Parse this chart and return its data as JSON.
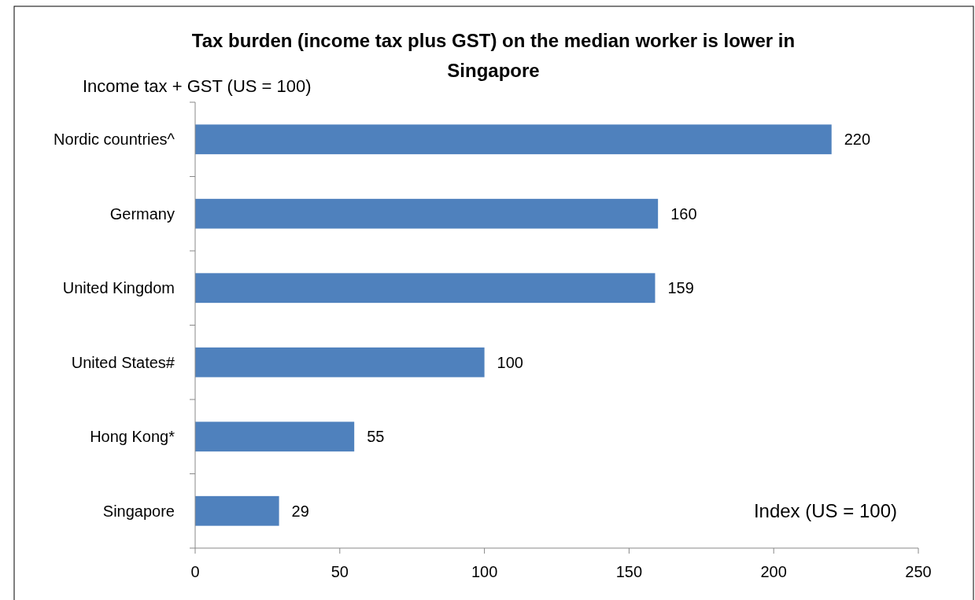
{
  "chart_data": {
    "type": "bar",
    "orientation": "horizontal",
    "title": "Tax burden (income tax plus GST) on the median worker is lower in Singapore",
    "ylabel": "Income tax + GST (US = 100)",
    "xlabel": "Index (US = 100)",
    "categories": [
      "Nordic countries^",
      "Germany",
      "United Kingdom",
      "United States#",
      "Hong Kong*",
      "Singapore"
    ],
    "values": [
      220,
      160,
      159,
      100,
      55,
      29
    ],
    "color": "#4f81bd",
    "xlim": [
      0,
      250
    ],
    "xticks": [
      0,
      50,
      100,
      150,
      200,
      250
    ],
    "data_labels": true,
    "grid": false
  }
}
